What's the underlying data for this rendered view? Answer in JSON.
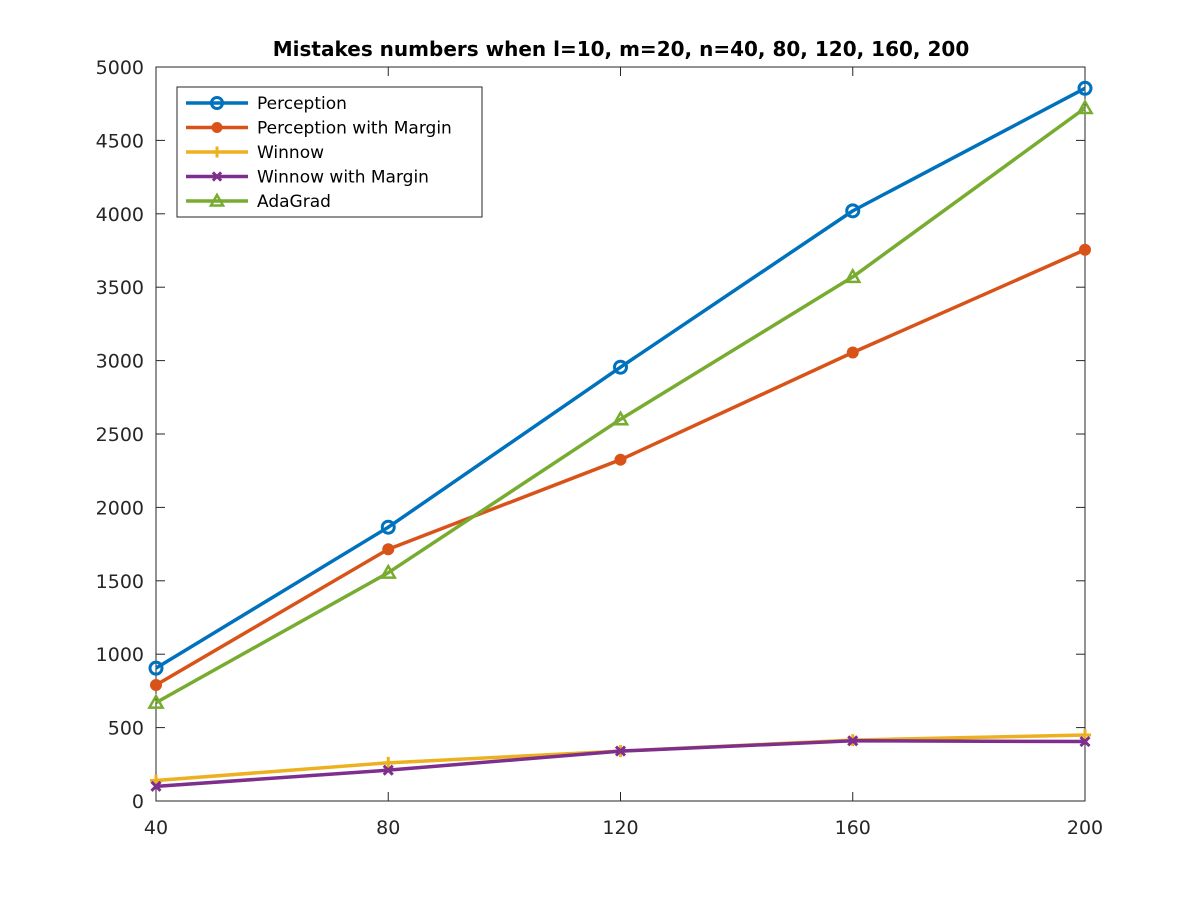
{
  "chart_data": {
    "type": "line",
    "title": "Mistakes numbers when l=10, m=20, n=40, 80, 120, 160, 200",
    "xlabel": "",
    "ylabel": "",
    "x": [
      40,
      80,
      120,
      160,
      200
    ],
    "xlim": [
      40,
      200
    ],
    "ylim": [
      0,
      5000
    ],
    "xticks": [
      "40",
      "80",
      "120",
      "160",
      "200"
    ],
    "yticks": [
      "0",
      "500",
      "1000",
      "1500",
      "2000",
      "2500",
      "3000",
      "3500",
      "4000",
      "4500",
      "5000"
    ],
    "grid": false,
    "legend_position": "top-left",
    "series": [
      {
        "name": "Perception",
        "color": "#0072BD",
        "marker": "circle-open",
        "values": [
          905,
          1865,
          2955,
          4020,
          4855
        ]
      },
      {
        "name": "Perception with Margin",
        "color": "#D95319",
        "marker": "circle-filled",
        "values": [
          790,
          1715,
          2325,
          3055,
          3755
        ]
      },
      {
        "name": "Winnow",
        "color": "#EDB120",
        "marker": "plus",
        "values": [
          140,
          260,
          340,
          415,
          450
        ]
      },
      {
        "name": "Winnow with Margin",
        "color": "#7E2F8E",
        "marker": "x",
        "values": [
          100,
          210,
          340,
          410,
          405
        ]
      },
      {
        "name": "AdaGrad",
        "color": "#77AC30",
        "marker": "triangle",
        "values": [
          670,
          1555,
          2600,
          3570,
          4720
        ]
      }
    ]
  }
}
